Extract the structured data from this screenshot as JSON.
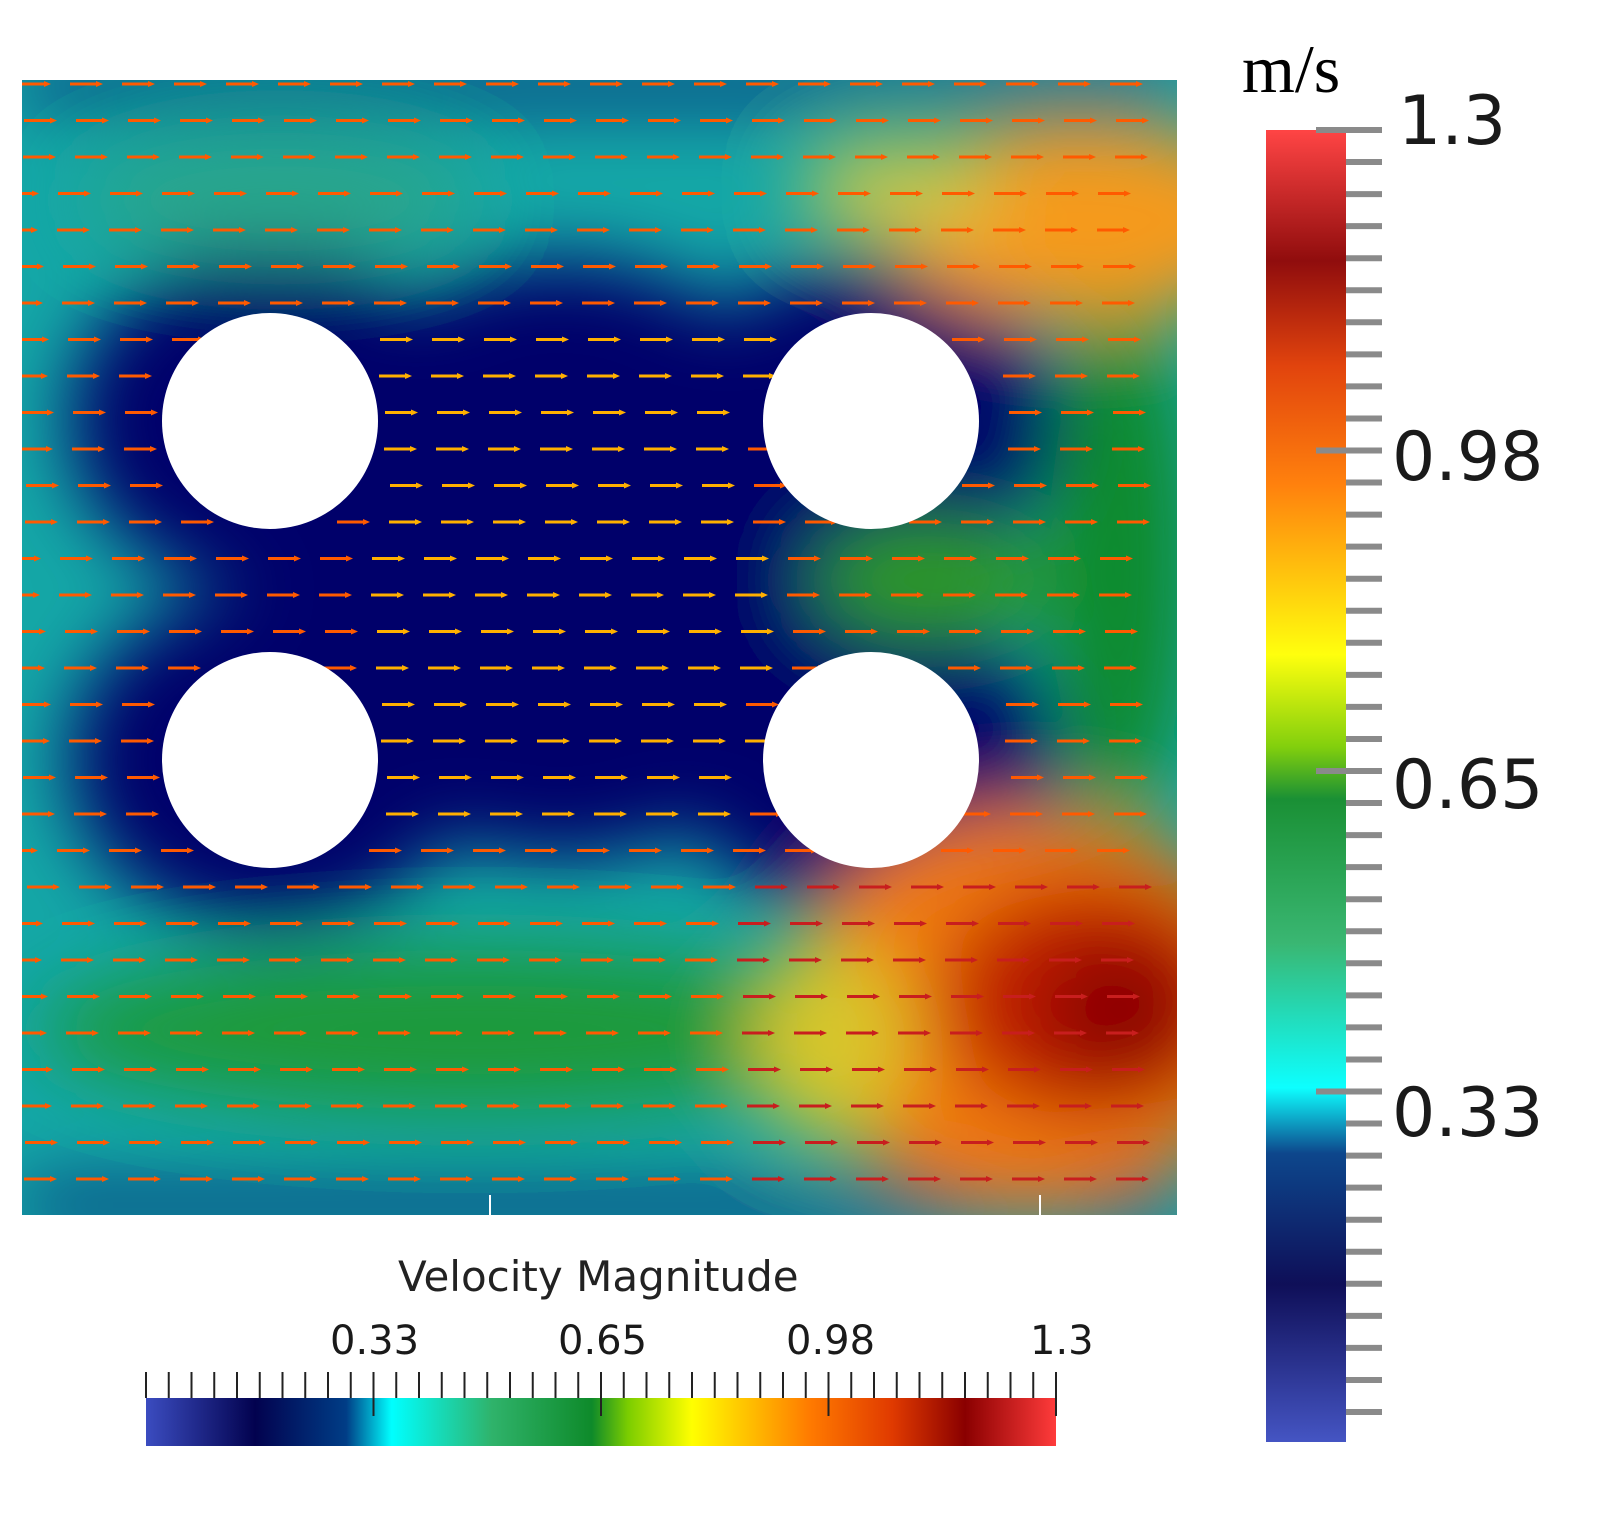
{
  "colorbar": {
    "title": "Velocity Magnitude",
    "unit": "m/s",
    "min": 0,
    "max": 1.3,
    "tick_labels": [
      "0.33",
      "0.65",
      "0.98",
      "1.3"
    ],
    "tick_values": [
      0.33,
      0.65,
      0.98,
      1.3
    ],
    "colormap": [
      "#3b4cc0",
      "#02024f",
      "#003d86",
      "#00ffff",
      "#0e8a2a",
      "#2a9a00",
      "#ffff00",
      "#ff6a00",
      "#8a0000",
      "#ff3b3b"
    ]
  },
  "flow": {
    "direction": "left-to-right",
    "obstacles": 4,
    "low_speed_color": "#05056a",
    "mid_speed_color": "#11b0b0",
    "high_speed_color": "#b00000",
    "arrow_color": "#ff5a00"
  }
}
